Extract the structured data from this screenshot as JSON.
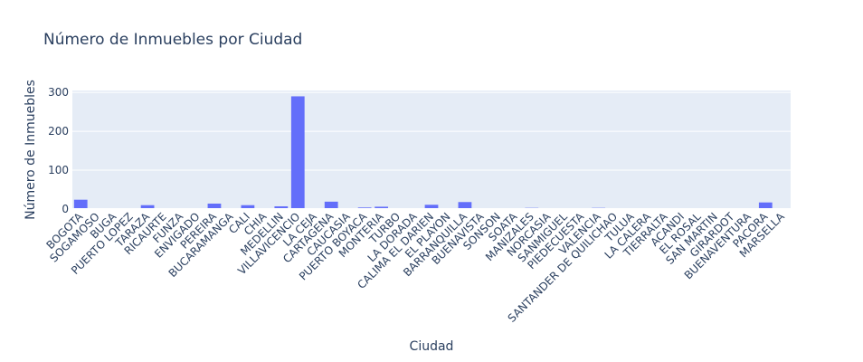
{
  "chart_data": {
    "type": "bar",
    "title": "Número de Inmuebles por Ciudad",
    "xlabel": "Ciudad",
    "ylabel": "Número de Inmuebles",
    "ylim": [
      0,
      305
    ],
    "yticks": [
      0,
      100,
      200,
      300
    ],
    "grid": true,
    "bar_color": "#636efa",
    "plot_bg": "#e5ecf6",
    "categories": [
      "BOGOTA",
      "SOGAMOSO",
      "BUGA",
      "PUERTO LOPEZ",
      "TARAZA",
      "RICAURTE",
      "FUNZA",
      "ENVIGADO",
      "PEREIRA",
      "BUCARAMANGA",
      "CALI",
      "CHIA",
      "MEDELLIN",
      "VILLAVICENCIO",
      "LA CEJA",
      "CARTAGENA",
      "CAUCASIA",
      "PUERTO BOYACA",
      "MONTERIA",
      "TURBO",
      "LA DORADA",
      "CALIMA EL DARIEN",
      "EL PLAYON",
      "BARRANQUILLA",
      "BUENAVISTA",
      "SONSON",
      "SOATA",
      "MANIZALES",
      "NORCASIA",
      "SANMIGUEL",
      "PIEDECUESTA",
      "VALENCIA",
      "SANTANDER DE QUILICHAO",
      "TULUA",
      "LA CALERA",
      "TIERRALTA",
      "ACANDI",
      "EL ROSAL",
      "SAN MARTIN",
      "GIRARDOT",
      "BUENAVENTURA",
      "PACORA",
      "MARSELLA"
    ],
    "values": [
      24,
      1,
      1,
      1,
      10,
      1,
      1,
      1,
      14,
      2,
      10,
      1,
      7,
      290,
      1,
      19,
      1,
      4,
      6,
      1,
      1,
      11,
      1,
      18,
      1,
      2,
      1,
      3,
      1,
      1,
      1,
      3,
      2,
      1,
      1,
      1,
      2,
      1,
      1,
      2,
      1,
      17,
      1
    ]
  }
}
